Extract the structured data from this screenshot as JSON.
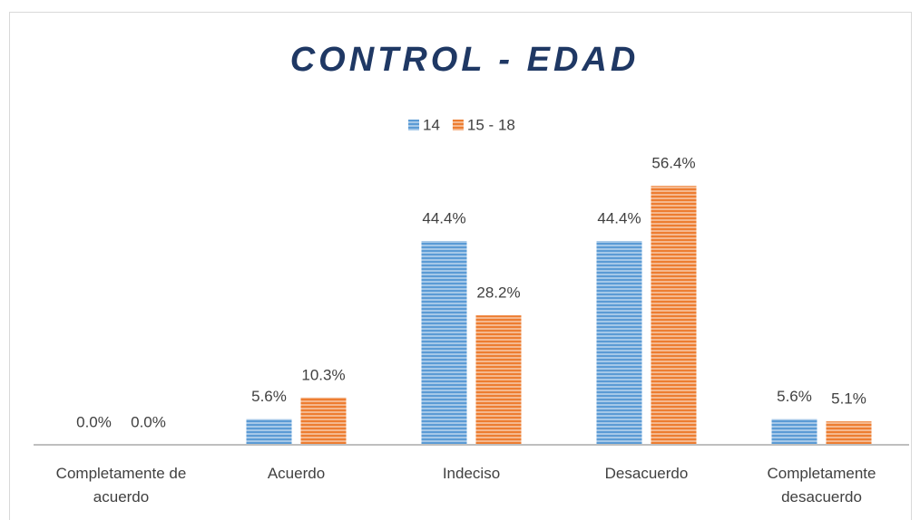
{
  "chart_data": {
    "type": "bar",
    "title": "CONTROL - EDAD",
    "categories": [
      "Completamente de acuerdo",
      "Acuerdo",
      "Indeciso",
      "Desacuerdo",
      "Completamente desacuerdo"
    ],
    "series": [
      {
        "name": "14",
        "color": "#5b9bd5",
        "values": [
          0,
          5.6,
          44.4,
          44.4,
          5.6
        ],
        "value_labels": [
          "0.0%",
          "5.6%",
          "44.4%",
          "44.4%",
          "5.6%"
        ]
      },
      {
        "name": "15 - 18",
        "color": "#ed7d31",
        "values": [
          0,
          10.3,
          28.2,
          56.4,
          5.1
        ],
        "value_labels": [
          "0.0%",
          "10.3%",
          "28.2%",
          "56.4%",
          "5.1%"
        ]
      }
    ],
    "ylim": [
      0,
      60
    ],
    "legend": "top"
  }
}
